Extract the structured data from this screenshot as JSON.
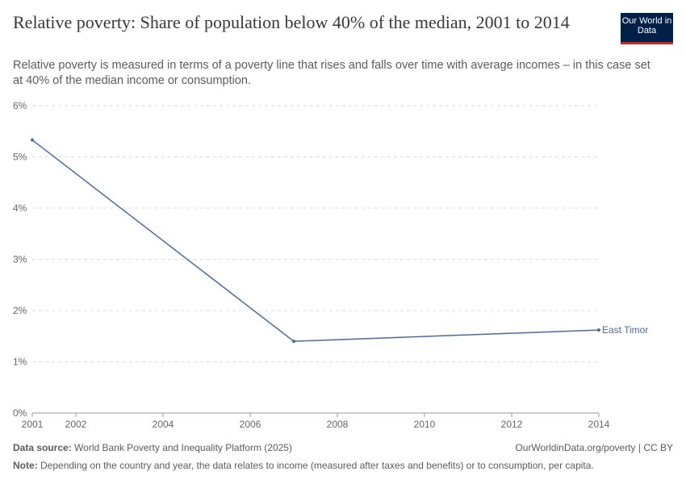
{
  "header": {
    "title": "Relative poverty: Share of population below 40% of the median, 2001 to 2014",
    "subtitle": "Relative poverty is measured in terms of a poverty line that rises and falls over time with average incomes – in this case set at 40% of the median income or consumption.",
    "logo": "Our World in Data"
  },
  "footer": {
    "source_label": "Data source:",
    "source": "World Bank Poverty and Inequality Platform (2025)",
    "link": "OurWorldinData.org/poverty | CC BY",
    "note_label": "Note:",
    "note": "Depending on the country and year, the data relates to income (measured after taxes and benefits) or to consumption, per capita."
  },
  "chart_data": {
    "type": "line",
    "title": "Relative poverty: Share of population below 40% of the median, 2001 to 2014",
    "xlim": [
      2001,
      2014
    ],
    "ylim": [
      0,
      6
    ],
    "grid": true,
    "xticks": [
      2001,
      2002,
      2004,
      2006,
      2008,
      2010,
      2012,
      2014
    ],
    "yticks": [
      "0%",
      "1%",
      "2%",
      "3%",
      "4%",
      "5%",
      "6%"
    ],
    "series": [
      {
        "name": "East Timor",
        "color": "#4c6a9c",
        "x": [
          2001,
          2007,
          2014
        ],
        "y": [
          5.33,
          1.4,
          1.62
        ]
      }
    ]
  }
}
